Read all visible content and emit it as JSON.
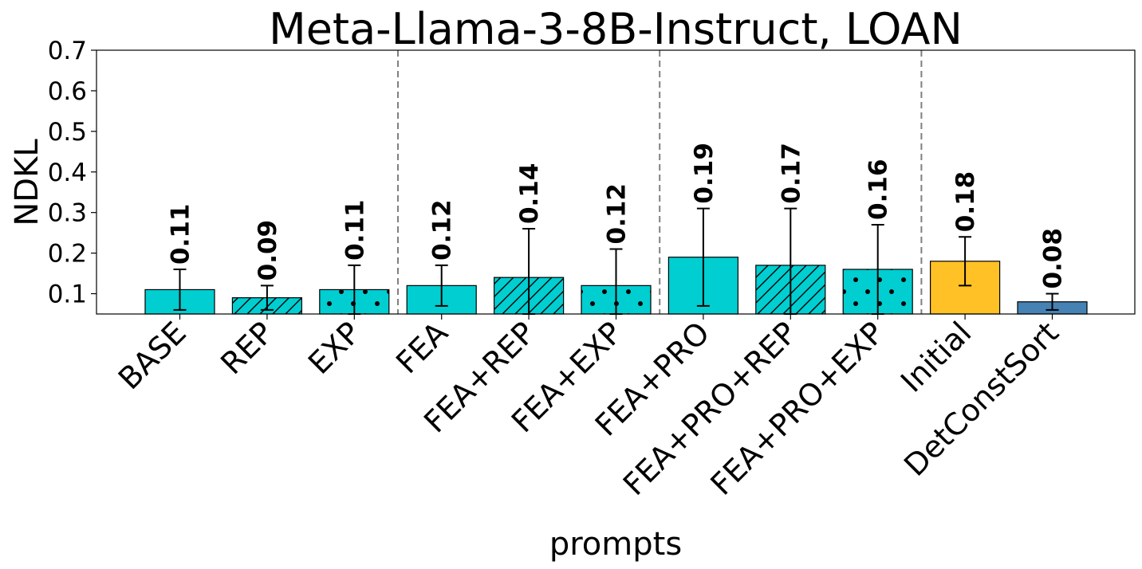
{
  "chart_data": {
    "type": "bar",
    "title": "Meta-Llama-3-8B-Instruct, LOAN",
    "xlabel": "prompts",
    "ylabel": "NDKL",
    "ylim": [
      0.05,
      0.7
    ],
    "yticks": [
      "0.1",
      "0.2",
      "0.3",
      "0.4",
      "0.5",
      "0.6",
      "0.7"
    ],
    "grid": false,
    "group_separators_after": [
      "EXP",
      "FEA+EXP",
      "FEA+PRO+EXP"
    ],
    "categories": [
      "BASE",
      "REP",
      "EXP",
      "FEA",
      "FEA+REP",
      "FEA+EXP",
      "FEA+PRO",
      "FEA+PRO+REP",
      "FEA+PRO+EXP",
      "Initial",
      "DetConstSort"
    ],
    "values": [
      0.11,
      0.09,
      0.11,
      0.12,
      0.14,
      0.12,
      0.19,
      0.17,
      0.16,
      0.18,
      0.08
    ],
    "value_labels": [
      "0.11",
      "0.09",
      "0.11",
      "0.12",
      "0.14",
      "0.12",
      "0.19",
      "0.17",
      "0.16",
      "0.18",
      "0.08"
    ],
    "error_low": [
      0.06,
      0.06,
      0.05,
      0.07,
      0.05,
      0.05,
      0.07,
      0.05,
      0.05,
      0.12,
      0.06
    ],
    "error_high": [
      0.16,
      0.12,
      0.17,
      0.17,
      0.26,
      0.21,
      0.31,
      0.31,
      0.27,
      0.24,
      0.1
    ],
    "patterns": [
      "none",
      "hatch",
      "dots",
      "none",
      "hatch",
      "dots",
      "none",
      "hatch",
      "dots",
      "none",
      "none"
    ],
    "colors": [
      "#00CED1",
      "#00CED1",
      "#00CED1",
      "#00CED1",
      "#00CED1",
      "#00CED1",
      "#00CED1",
      "#00CED1",
      "#00CED1",
      "#FFC125",
      "#4682B4"
    ]
  }
}
